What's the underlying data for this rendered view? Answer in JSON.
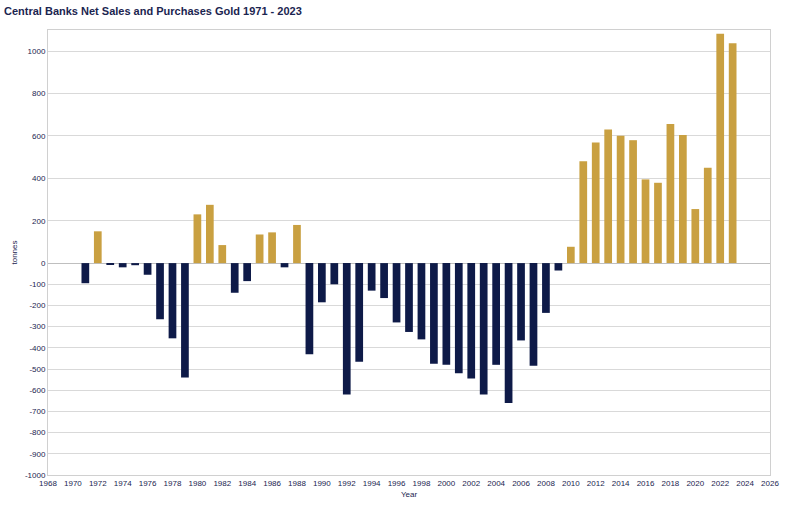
{
  "chart_data": {
    "type": "bar",
    "title": "Central Banks Net Sales and Purchases Gold 1971 - 2023",
    "x_label": "Year",
    "y_label": "tonnes",
    "x": [
      1971,
      1972,
      1973,
      1974,
      1975,
      1976,
      1977,
      1978,
      1979,
      1980,
      1981,
      1982,
      1983,
      1984,
      1985,
      1986,
      1987,
      1988,
      1989,
      1990,
      1991,
      1992,
      1993,
      1994,
      1995,
      1996,
      1997,
      1998,
      1999,
      2000,
      2001,
      2002,
      2003,
      2004,
      2005,
      2006,
      2007,
      2008,
      2009,
      2010,
      2011,
      2012,
      2013,
      2014,
      2015,
      2016,
      2017,
      2018,
      2019,
      2020,
      2021,
      2022,
      2023
    ],
    "values": [
      -95,
      150,
      -5,
      -20,
      -10,
      -55,
      -265,
      -355,
      -540,
      230,
      275,
      85,
      -140,
      -85,
      135,
      145,
      -20,
      180,
      -430,
      -185,
      -100,
      -620,
      -465,
      -130,
      -165,
      -280,
      -325,
      -360,
      -475,
      -480,
      -520,
      -545,
      -620,
      -480,
      -660,
      -365,
      -485,
      -235,
      -35,
      77,
      481,
      569,
      630,
      601,
      580,
      395,
      379,
      656,
      605,
      255,
      450,
      1082,
      1037
    ],
    "colors": [
      "#0E1A48",
      "#C9A041",
      "#0E1A48",
      "#0E1A48",
      "#0E1A48",
      "#0E1A48",
      "#0E1A48",
      "#0E1A48",
      "#0E1A48",
      "#C9A041",
      "#C9A041",
      "#C9A041",
      "#0E1A48",
      "#0E1A48",
      "#C9A041",
      "#C9A041",
      "#0E1A48",
      "#C9A041",
      "#0E1A48",
      "#0E1A48",
      "#0E1A48",
      "#0E1A48",
      "#0E1A48",
      "#0E1A48",
      "#0E1A48",
      "#0E1A48",
      "#0E1A48",
      "#0E1A48",
      "#0E1A48",
      "#0E1A48",
      "#0E1A48",
      "#0E1A48",
      "#0E1A48",
      "#0E1A48",
      "#0E1A48",
      "#0E1A48",
      "#0E1A48",
      "#0E1A48",
      "#0E1A48",
      "#C9A041",
      "#C9A041",
      "#C9A041",
      "#C9A041",
      "#C9A041",
      "#C9A041",
      "#C9A041",
      "#C9A041",
      "#C9A041",
      "#C9A041",
      "#C9A041",
      "#C9A041",
      "#C9A041",
      "#C9A041"
    ],
    "xlim": [
      1968,
      2026
    ],
    "xticks": [
      1968,
      1970,
      1972,
      1974,
      1976,
      1978,
      1980,
      1982,
      1984,
      1986,
      1988,
      1990,
      1992,
      1994,
      1996,
      1998,
      2000,
      2002,
      2004,
      2006,
      2008,
      2010,
      2012,
      2014,
      2016,
      2018,
      2020,
      2022,
      2024,
      2026
    ],
    "ylim": [
      -1000,
      1100
    ],
    "yticks": [
      -1000,
      -900,
      -800,
      -700,
      -600,
      -500,
      -400,
      -300,
      -200,
      -100,
      0,
      200,
      400,
      600,
      800,
      1000
    ],
    "grid": true
  }
}
